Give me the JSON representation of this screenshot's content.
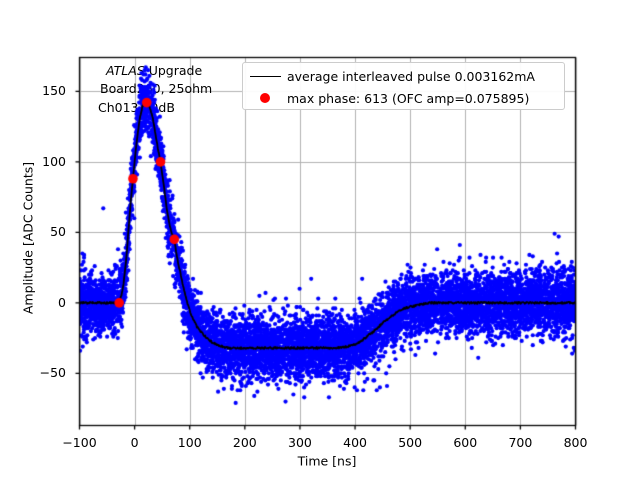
{
  "chart_data": {
    "type": "scatter",
    "title": "",
    "xlabel": "Time [ns]",
    "ylabel": "Amplitude [ADC Counts]",
    "xlim": [
      -100,
      800
    ],
    "ylim": [
      -87,
      174
    ],
    "grid": {
      "show": true,
      "color": "#b0b0b0"
    },
    "xticks": [
      {
        "v": -100,
        "label": "−100"
      },
      {
        "v": 0,
        "label": "0"
      },
      {
        "v": 100,
        "label": "100"
      },
      {
        "v": 200,
        "label": "200"
      },
      {
        "v": 300,
        "label": "300"
      },
      {
        "v": 400,
        "label": "400"
      },
      {
        "v": 500,
        "label": "500"
      },
      {
        "v": 600,
        "label": "600"
      },
      {
        "v": 700,
        "label": "700"
      },
      {
        "v": 800,
        "label": "800"
      }
    ],
    "yticks": [
      {
        "v": -50,
        "label": "−50"
      },
      {
        "v": 0,
        "label": "0"
      },
      {
        "v": 50,
        "label": "50"
      },
      {
        "v": 100,
        "label": "100"
      },
      {
        "v": 150,
        "label": "150"
      }
    ],
    "annotation": {
      "line1_italic": "ATLAS",
      "line1_rest": " Upgrade",
      "line2": "Board260, 25ohm",
      "line3": "Ch013 50dB"
    },
    "legend": {
      "entries": [
        {
          "marker": "line",
          "color": "#000000",
          "label": "average interleaved pulse 0.003162mA"
        },
        {
          "marker": "dot",
          "color": "#ff0000",
          "label": "max phase: 613 (OFC amp=0.075895)"
        }
      ]
    },
    "series": {
      "interleaved_scatter": {
        "name": "interleaved pulse samples",
        "color": "#0000ff",
        "n_points": 8500,
        "noise_sigma": 11,
        "outlier_fraction": 0.02,
        "outlier_sigma": 24,
        "marker_radius": 2.1
      },
      "average_pulse": {
        "name": "average interleaved pulse",
        "color": "#000000",
        "line_width": 1.8,
        "points": [
          [
            -100,
            0
          ],
          [
            -60,
            0
          ],
          [
            -40,
            0
          ],
          [
            -33,
            0
          ],
          [
            -29,
            1
          ],
          [
            -26,
            3
          ],
          [
            -23,
            7
          ],
          [
            -20,
            14
          ],
          [
            -17,
            24
          ],
          [
            -14,
            37
          ],
          [
            -11,
            52
          ],
          [
            -8,
            67
          ],
          [
            -5,
            80
          ],
          [
            -3,
            88
          ],
          [
            -1,
            96
          ],
          [
            2,
            108
          ],
          [
            5,
            118
          ],
          [
            8,
            127
          ],
          [
            11,
            134
          ],
          [
            14,
            139
          ],
          [
            17,
            142
          ],
          [
            20,
            143
          ],
          [
            22,
            142.5
          ],
          [
            25,
            141
          ],
          [
            28,
            138
          ],
          [
            31,
            134
          ],
          [
            35,
            127
          ],
          [
            39,
            117
          ],
          [
            43,
            108
          ],
          [
            47,
            100
          ],
          [
            51,
            89
          ],
          [
            55,
            77
          ],
          [
            59,
            65
          ],
          [
            63,
            56
          ],
          [
            67,
            50
          ],
          [
            72,
            45
          ],
          [
            77,
            32
          ],
          [
            82,
            23
          ],
          [
            87,
            14
          ],
          [
            92,
            5
          ],
          [
            97,
            -2
          ],
          [
            102,
            -8
          ],
          [
            107,
            -12
          ],
          [
            113,
            -17
          ],
          [
            119,
            -20
          ],
          [
            126,
            -23
          ],
          [
            133,
            -26
          ],
          [
            141,
            -28
          ],
          [
            150,
            -30
          ],
          [
            160,
            -31
          ],
          [
            172,
            -32
          ],
          [
            190,
            -32
          ],
          [
            220,
            -32
          ],
          [
            260,
            -32
          ],
          [
            300,
            -32
          ],
          [
            340,
            -32
          ],
          [
            368,
            -32
          ],
          [
            385,
            -31
          ],
          [
            397,
            -30
          ],
          [
            408,
            -28
          ],
          [
            418,
            -25
          ],
          [
            428,
            -22
          ],
          [
            438,
            -19
          ],
          [
            448,
            -15
          ],
          [
            458,
            -12
          ],
          [
            468,
            -9
          ],
          [
            478,
            -6
          ],
          [
            488,
            -4
          ],
          [
            498,
            -3
          ],
          [
            510,
            -2
          ],
          [
            522,
            -1
          ],
          [
            538,
            0
          ],
          [
            570,
            0
          ],
          [
            620,
            0
          ],
          [
            680,
            0
          ],
          [
            740,
            0
          ],
          [
            800,
            0
          ]
        ]
      },
      "max_phase": {
        "name": "max phase samples",
        "color": "#ff0000",
        "marker_radius": 4.8,
        "points": [
          [
            -28,
            0
          ],
          [
            -3,
            88
          ],
          [
            22,
            142
          ],
          [
            47,
            100
          ],
          [
            72,
            45
          ]
        ]
      }
    }
  }
}
